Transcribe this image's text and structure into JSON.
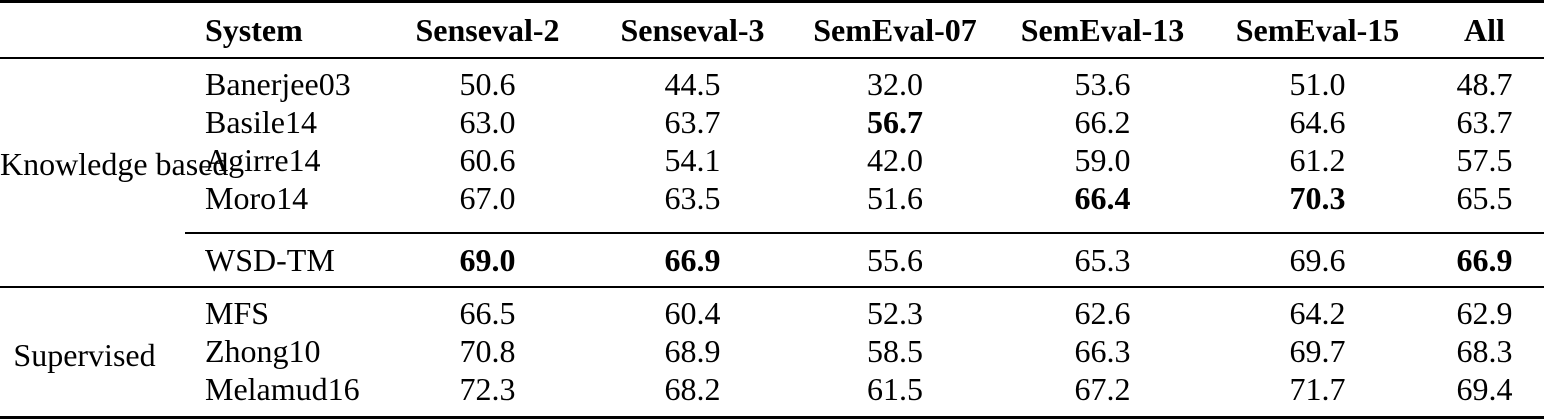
{
  "table": {
    "header": {
      "group": "",
      "system": "System",
      "cols": [
        "Senseval-2",
        "Senseval-3",
        "SemEval-07",
        "SemEval-13",
        "SemEval-15",
        "All"
      ]
    },
    "groups": [
      {
        "label": "Knowledge based"
      },
      {
        "label": "Supervised"
      }
    ],
    "rows": [
      {
        "system": "Banerjee03",
        "group": "Knowledge based",
        "scores": [
          "50.6",
          "44.5",
          "32.0",
          "53.6",
          "51.0",
          "48.7"
        ],
        "bold_score_indices": []
      },
      {
        "system": "Basile14",
        "group": "Knowledge based",
        "scores": [
          "63.0",
          "63.7",
          "56.7",
          "66.2",
          "64.6",
          "63.7"
        ],
        "bold_score_indices": [
          2
        ]
      },
      {
        "system": "Agirre14",
        "group": "Knowledge based",
        "scores": [
          "60.6",
          "54.1",
          "42.0",
          "59.0",
          "61.2",
          "57.5"
        ],
        "bold_score_indices": []
      },
      {
        "system": "Moro14",
        "group": "Knowledge based",
        "scores": [
          "67.0",
          "63.5",
          "51.6",
          "66.4",
          "70.3",
          "65.5"
        ],
        "bold_score_indices": [
          3,
          4
        ]
      },
      {
        "system": "WSD-TM",
        "group": "Knowledge based",
        "scores": [
          "69.0",
          "66.9",
          "55.6",
          "65.3",
          "69.6",
          "66.9"
        ],
        "bold_score_indices": [
          0,
          1,
          5
        ]
      },
      {
        "system": "MFS",
        "group": "Supervised",
        "scores": [
          "66.5",
          "60.4",
          "52.3",
          "62.6",
          "64.2",
          "62.9"
        ],
        "bold_score_indices": []
      },
      {
        "system": "Zhong10",
        "group": "Supervised",
        "scores": [
          "70.8",
          "68.9",
          "58.5",
          "66.3",
          "69.7",
          "68.3"
        ],
        "bold_score_indices": []
      },
      {
        "system": "Melamud16",
        "group": "Supervised",
        "scores": [
          "72.3",
          "68.2",
          "61.5",
          "67.2",
          "71.7",
          "69.4"
        ],
        "bold_score_indices": []
      }
    ],
    "colors": {
      "text": "#000000",
      "background": "#ffffff",
      "rule": "#000000"
    }
  }
}
